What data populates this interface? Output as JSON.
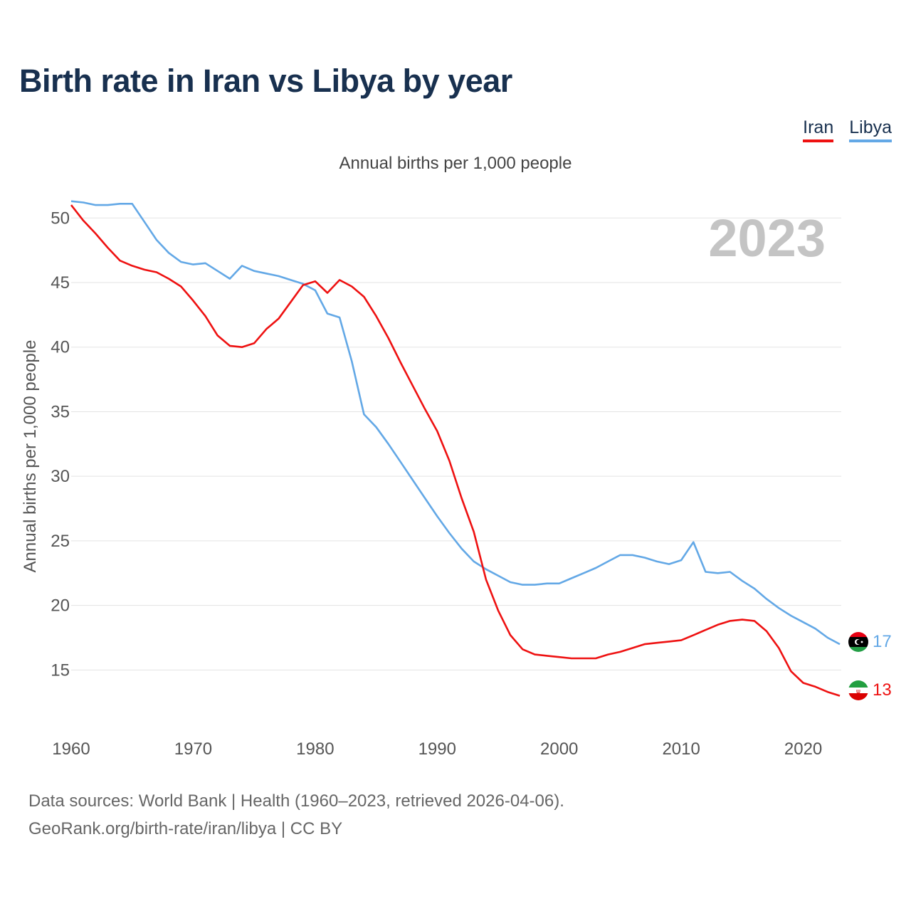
{
  "title": "Birth rate in Iran vs Libya by year",
  "subtitle": "Annual births per 1,000 people",
  "legend": [
    {
      "label": "Iran",
      "color": "#ee1111"
    },
    {
      "label": "Libya",
      "color": "#63a8e6"
    }
  ],
  "footer": {
    "line1": "Data sources: World Bank | Health (1960–2023, retrieved 2026-04-06).",
    "line2": "GeoRank.org/birth-rate/iran/libya | CC BY"
  },
  "chart_data": {
    "type": "line",
    "title": "Birth rate in Iran vs Libya by year",
    "ylabel": "Annual births per 1,000 people",
    "xlabel": "",
    "year_label": "2023",
    "xlim": [
      1960,
      2023
    ],
    "ylim": [
      10.5,
      52
    ],
    "xticks": [
      1960,
      1970,
      1980,
      1990,
      2000,
      2010,
      2020
    ],
    "yticks": [
      15,
      20,
      25,
      30,
      35,
      40,
      45,
      50
    ],
    "grid": true,
    "legend_position": "top-right",
    "x": [
      1960,
      1961,
      1962,
      1963,
      1964,
      1965,
      1966,
      1967,
      1968,
      1969,
      1970,
      1971,
      1972,
      1973,
      1974,
      1975,
      1976,
      1977,
      1978,
      1979,
      1980,
      1981,
      1982,
      1983,
      1984,
      1985,
      1986,
      1987,
      1988,
      1989,
      1990,
      1991,
      1992,
      1993,
      1994,
      1995,
      1996,
      1997,
      1998,
      1999,
      2000,
      2001,
      2002,
      2003,
      2004,
      2005,
      2006,
      2007,
      2008,
      2009,
      2010,
      2011,
      2012,
      2013,
      2014,
      2015,
      2016,
      2017,
      2018,
      2019,
      2020,
      2021,
      2022,
      2023
    ],
    "series": [
      {
        "name": "Iran",
        "color": "#ee1111",
        "end_label": "13",
        "values": [
          51.0,
          49.8,
          48.8,
          47.7,
          46.7,
          46.3,
          46.0,
          45.8,
          45.3,
          44.7,
          43.6,
          42.4,
          40.9,
          40.1,
          40.0,
          40.3,
          41.4,
          42.2,
          43.5,
          44.8,
          45.1,
          44.2,
          45.2,
          44.7,
          43.9,
          42.4,
          40.7,
          38.8,
          37.0,
          35.2,
          33.5,
          31.2,
          28.3,
          25.7,
          22.0,
          19.6,
          17.7,
          16.6,
          16.2,
          16.1,
          16.0,
          15.9,
          15.9,
          15.9,
          16.2,
          16.4,
          16.7,
          17.0,
          17.1,
          17.2,
          17.3,
          17.7,
          18.1,
          18.5,
          18.8,
          18.9,
          18.8,
          18.0,
          16.7,
          14.9,
          14.0,
          13.7,
          13.3,
          13.0
        ]
      },
      {
        "name": "Libya",
        "color": "#63a8e6",
        "end_label": "17",
        "values": [
          51.3,
          51.2,
          51.0,
          51.0,
          51.1,
          51.1,
          49.7,
          48.3,
          47.3,
          46.6,
          46.4,
          46.5,
          45.9,
          45.3,
          46.3,
          45.9,
          45.7,
          45.5,
          45.2,
          44.9,
          44.4,
          42.6,
          42.3,
          38.9,
          34.8,
          33.8,
          32.5,
          31.1,
          29.7,
          28.3,
          26.9,
          25.6,
          24.4,
          23.4,
          22.8,
          22.3,
          21.8,
          21.6,
          21.6,
          21.7,
          21.7,
          22.1,
          22.5,
          22.9,
          23.4,
          23.9,
          23.9,
          23.7,
          23.4,
          23.2,
          23.5,
          24.9,
          22.6,
          22.5,
          22.6,
          21.9,
          21.3,
          20.5,
          19.8,
          19.2,
          18.7,
          18.2,
          17.5,
          17.0
        ]
      }
    ]
  }
}
